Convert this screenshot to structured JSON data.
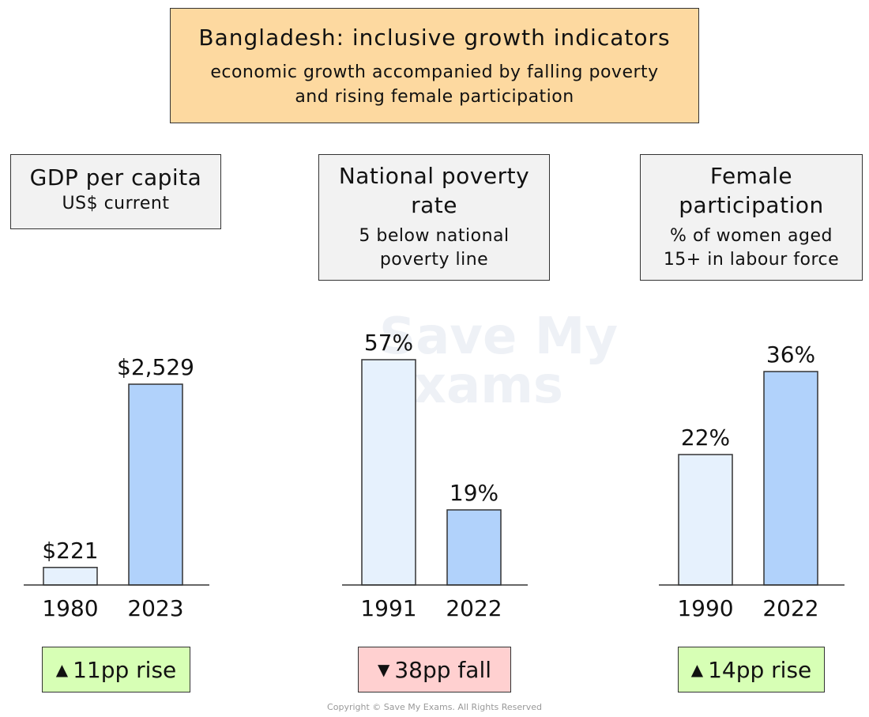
{
  "title": "Bangladesh: inclusive growth indicators",
  "subtitle_line1": "economic growth accompanied by falling poverty",
  "subtitle_line2": "and rising female participation",
  "watermark_line1": "Save My",
  "watermark_line2": "Exams",
  "copyright": "Copyright © Save My Exams. All Rights Reserved",
  "colors": {
    "earlier_bar": "#e6f1fd",
    "later_bar": "#b1d2fb",
    "rise_tag": "#d7ffb5",
    "fall_tag": "#ffd0d0"
  },
  "panels": [
    {
      "title_lines": [
        "GDP per capita"
      ],
      "sub_lines": [
        "US$ current"
      ],
      "change_label": "11pp rise",
      "change_direction": "up"
    },
    {
      "title_lines": [
        "National poverty",
        "rate"
      ],
      "sub_lines": [
        "5 below national",
        "poverty line"
      ],
      "change_label": "38pp fall",
      "change_direction": "down"
    },
    {
      "title_lines": [
        "Female",
        "participation"
      ],
      "sub_lines": [
        "% of women aged",
        "15+ in labour force"
      ],
      "change_label": "14pp rise",
      "change_direction": "up"
    }
  ],
  "chart_data": [
    {
      "type": "bar",
      "title": "GDP per capita",
      "ylabel": "US$ current",
      "categories": [
        "1980",
        "2023"
      ],
      "values": [
        221,
        2529
      ],
      "value_labels": [
        "$221",
        "$2,529"
      ]
    },
    {
      "type": "bar",
      "title": "National poverty rate",
      "ylabel": "5 below national poverty line",
      "categories": [
        "1991",
        "2022"
      ],
      "values": [
        57,
        19
      ],
      "value_labels": [
        "57%",
        "19%"
      ]
    },
    {
      "type": "bar",
      "title": "Female participation",
      "ylabel": "% of women aged 15+ in labour force",
      "categories": [
        "1990",
        "2022"
      ],
      "values": [
        22,
        36
      ],
      "value_labels": [
        "22%",
        "36%"
      ]
    }
  ]
}
